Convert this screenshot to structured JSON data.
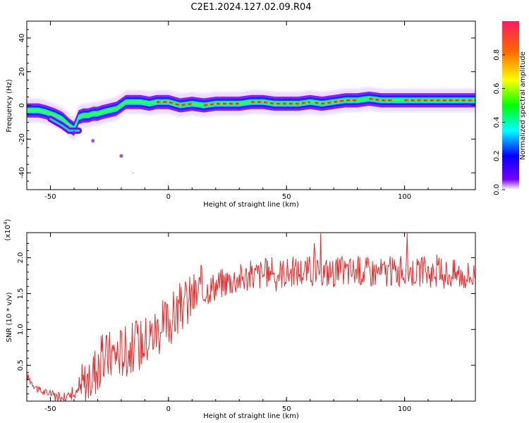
{
  "title": "C2E1.2024.127.02.09.R04",
  "colors": {
    "ridge": "#ff2a2a",
    "snr_line": "#e52b2b"
  },
  "chart_data": [
    {
      "type": "heatmap",
      "xlabel": "Height of straight line (km)",
      "ylabel": "Frequency (Hz)",
      "xlim": [
        -60,
        130
      ],
      "ylim": [
        -50,
        50
      ],
      "xticks": [
        -50,
        0,
        50,
        100
      ],
      "yticks": [
        -40,
        -20,
        0,
        20,
        40
      ],
      "ridge": {
        "x": [
          -58,
          -55,
          -52,
          -48,
          -45,
          -42,
          -40,
          -38,
          -36,
          -34,
          -32,
          -30,
          -28,
          -25,
          -22,
          -18,
          -15,
          -12,
          -8,
          -5,
          0,
          5,
          10,
          15,
          20,
          25,
          30,
          35,
          40,
          45,
          50,
          55,
          60,
          65,
          70,
          75,
          80,
          85,
          90,
          95,
          100,
          105,
          110,
          115,
          120,
          125,
          130
        ],
        "freq": [
          -3,
          -3,
          -4,
          -6,
          -8,
          -12,
          -14,
          -7,
          -6,
          -6,
          -5,
          -5,
          -4,
          -3,
          -2,
          2,
          2,
          2,
          1,
          2,
          2,
          0,
          1,
          0,
          1,
          1,
          1,
          2,
          2,
          1,
          1,
          1,
          2,
          1,
          2,
          3,
          3,
          4,
          3,
          3,
          3,
          3,
          3,
          3,
          3,
          3,
          3
        ]
      },
      "scatter_points": {
        "x": [
          -40,
          -32,
          -20,
          -15
        ],
        "freq": [
          -16,
          -21,
          -30,
          -40
        ]
      },
      "colorbar": {
        "label": "Normalized spectral amplitude",
        "range": [
          0,
          1
        ],
        "ticks": [
          "0.0",
          "0.2",
          "0.4",
          "0.6",
          "0.8"
        ],
        "colors": [
          "#ffffff",
          "#7a00ff",
          "#0000ff",
          "#00ffff",
          "#00ff00",
          "#ffff00",
          "#ff6600",
          "#ff1a66"
        ]
      }
    },
    {
      "type": "line",
      "xlabel": "Height of straight line (km)",
      "ylabel": "SNR (10 * v/v)",
      "scale_label": "(x10",
      "scale_exp": "4",
      "scale_close": ")",
      "xlim": [
        -60,
        130
      ],
      "ylim": [
        0,
        2.35
      ],
      "xticks": [
        -50,
        0,
        50,
        100
      ],
      "yticks": [
        "0.5",
        "1.0",
        "1.5",
        "2.0"
      ],
      "trend": {
        "x": [
          -60,
          -55,
          -50,
          -45,
          -40,
          -35,
          -30,
          -25,
          -20,
          -15,
          -10,
          -5,
          0,
          5,
          10,
          15,
          20,
          25,
          30,
          35,
          40,
          50,
          60,
          70,
          80,
          90,
          100,
          110,
          120,
          130
        ],
        "y": [
          0.35,
          0.15,
          0.1,
          0.06,
          0.08,
          0.25,
          0.5,
          0.65,
          0.7,
          0.75,
          0.85,
          1.0,
          1.1,
          1.3,
          1.45,
          1.55,
          1.62,
          1.68,
          1.72,
          1.75,
          1.78,
          1.8,
          1.82,
          1.8,
          1.82,
          1.8,
          1.82,
          1.8,
          1.78,
          1.75
        ]
      }
    }
  ]
}
